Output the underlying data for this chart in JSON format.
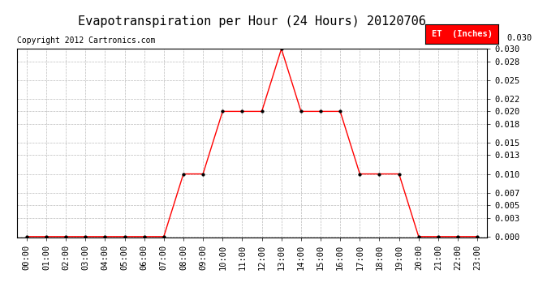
{
  "title": "Evapotranspiration per Hour (24 Hours) 20120706",
  "copyright": "Copyright 2012 Cartronics.com",
  "legend_label": "ET  (Inches)",
  "hours": [
    0,
    1,
    2,
    3,
    4,
    5,
    6,
    7,
    8,
    9,
    10,
    11,
    12,
    13,
    14,
    15,
    16,
    17,
    18,
    19,
    20,
    21,
    22,
    23
  ],
  "hour_labels": [
    "00:00",
    "01:00",
    "02:00",
    "03:00",
    "04:00",
    "05:00",
    "06:00",
    "07:00",
    "08:00",
    "09:00",
    "10:00",
    "11:00",
    "12:00",
    "13:00",
    "14:00",
    "15:00",
    "16:00",
    "17:00",
    "18:00",
    "19:00",
    "20:00",
    "21:00",
    "22:00",
    "23:00"
  ],
  "values": [
    0.0,
    0.0,
    0.0,
    0.0,
    0.0,
    0.0,
    0.0,
    0.0,
    0.01,
    0.01,
    0.02,
    0.02,
    0.02,
    0.03,
    0.02,
    0.02,
    0.02,
    0.01,
    0.01,
    0.01,
    0.0,
    0.0,
    0.0,
    0.0
  ],
  "yticks": [
    0.0,
    0.003,
    0.005,
    0.007,
    0.01,
    0.013,
    0.015,
    0.018,
    0.02,
    0.022,
    0.025,
    0.028,
    0.03
  ],
  "ytick_labels": [
    "0.000",
    "0.003",
    "0.005",
    "0.007",
    "0.010",
    "0.013",
    "0.015",
    "0.018",
    "0.020",
    "0.022",
    "0.025",
    "0.028",
    "0.030"
  ],
  "ylim": [
    0.0,
    0.03
  ],
  "line_color": "red",
  "marker_color": "black",
  "grid_color": "#bbbbbb",
  "background_color": "white",
  "title_fontsize": 11,
  "copyright_fontsize": 7,
  "tick_fontsize": 7.5,
  "legend_bg": "red",
  "legend_fg": "white"
}
